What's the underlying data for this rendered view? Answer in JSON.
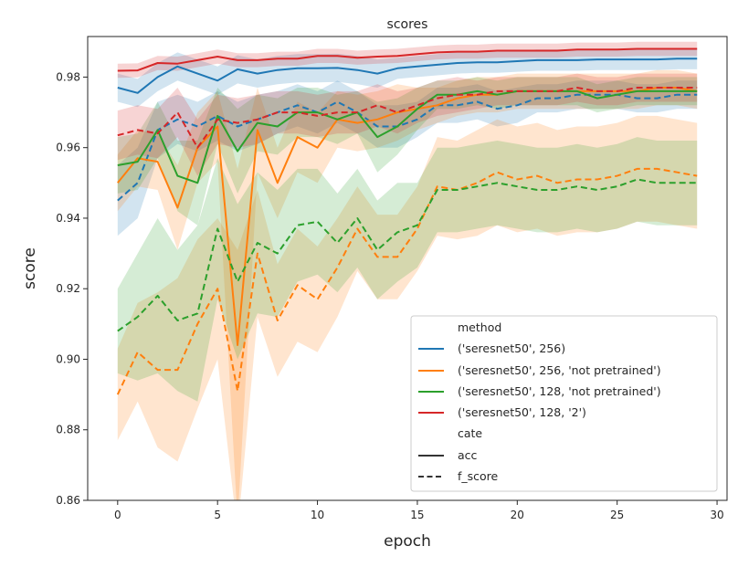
{
  "chart_data": {
    "type": "line",
    "title": "scores",
    "xlabel": "epoch",
    "ylabel": "score",
    "xlim": [
      -1.5,
      30.5
    ],
    "ylim": [
      0.86,
      0.9915
    ],
    "x_ticks": [
      0,
      5,
      10,
      15,
      20,
      25,
      30
    ],
    "x_tick_labels": [
      "0",
      "5",
      "10",
      "15",
      "20",
      "25",
      "30"
    ],
    "y_ticks": [
      0.86,
      0.88,
      0.9,
      0.92,
      0.94,
      0.96,
      0.98
    ],
    "y_tick_labels": [
      "0.86",
      "0.88",
      "0.90",
      "0.92",
      "0.94",
      "0.96",
      "0.98"
    ],
    "grid": false,
    "legend": {
      "placement": "lower-right",
      "hue_title": "method",
      "style_title": "cate",
      "methods": [
        {
          "label": "('seresnet50', 256)",
          "color": "#1f77b4"
        },
        {
          "label": "('seresnet50', 256, 'not pretrained')",
          "color": "#ff7f0e"
        },
        {
          "label": "('seresnet50', 128, 'not pretrained')",
          "color": "#2ca02c"
        },
        {
          "label": "('seresnet50', 128, '2')",
          "color": "#d62728"
        }
      ],
      "styles": [
        {
          "label": "acc",
          "dash": "solid"
        },
        {
          "label": "f_score",
          "dash": "dashed"
        }
      ]
    },
    "x": [
      0,
      1,
      2,
      3,
      4,
      5,
      6,
      7,
      8,
      9,
      10,
      11,
      12,
      13,
      14,
      15,
      16,
      17,
      18,
      19,
      20,
      21,
      22,
      23,
      24,
      25,
      26,
      27,
      28,
      29
    ],
    "series": [
      {
        "method": 0,
        "cate": "acc",
        "values": [
          0.977,
          0.9755,
          0.98,
          0.983,
          0.981,
          0.979,
          0.9822,
          0.981,
          0.982,
          0.9825,
          0.9825,
          0.9826,
          0.982,
          0.981,
          0.9825,
          0.983,
          0.9835,
          0.984,
          0.9842,
          0.9842,
          0.9845,
          0.9848,
          0.9848,
          0.9848,
          0.985,
          0.985,
          0.985,
          0.985,
          0.9852,
          0.9852
        ],
        "band": [
          0.004,
          0.004,
          0.004,
          0.004,
          0.004,
          0.004,
          0.004,
          0.004,
          0.004,
          0.004,
          0.004,
          0.004,
          0.004,
          0.004,
          0.003,
          0.003,
          0.003,
          0.003,
          0.003,
          0.003,
          0.003,
          0.003,
          0.003,
          0.003,
          0.003,
          0.003,
          0.003,
          0.003,
          0.003,
          0.003
        ]
      },
      {
        "method": 0,
        "cate": "f_score",
        "values": [
          0.945,
          0.95,
          0.965,
          0.968,
          0.966,
          0.969,
          0.966,
          0.968,
          0.97,
          0.972,
          0.97,
          0.973,
          0.97,
          0.966,
          0.966,
          0.968,
          0.972,
          0.972,
          0.973,
          0.971,
          0.972,
          0.974,
          0.974,
          0.975,
          0.975,
          0.975,
          0.974,
          0.974,
          0.975,
          0.975
        ],
        "band": [
          0.01,
          0.01,
          0.008,
          0.007,
          0.007,
          0.007,
          0.007,
          0.007,
          0.006,
          0.006,
          0.006,
          0.006,
          0.006,
          0.006,
          0.006,
          0.005,
          0.005,
          0.005,
          0.005,
          0.005,
          0.005,
          0.004,
          0.004,
          0.004,
          0.004,
          0.004,
          0.004,
          0.004,
          0.004,
          0.004
        ]
      },
      {
        "method": 1,
        "cate": "acc",
        "values": [
          0.95,
          0.957,
          0.956,
          0.943,
          0.96,
          0.966,
          0.904,
          0.965,
          0.95,
          0.963,
          0.96,
          0.968,
          0.967,
          0.968,
          0.97,
          0.971,
          0.972,
          0.974,
          0.975,
          0.975,
          0.976,
          0.976,
          0.976,
          0.976,
          0.976,
          0.976,
          0.976,
          0.977,
          0.977,
          0.976
        ],
        "band": [
          0.008,
          0.008,
          0.008,
          0.012,
          0.01,
          0.01,
          0.05,
          0.012,
          0.01,
          0.01,
          0.01,
          0.008,
          0.008,
          0.008,
          0.008,
          0.006,
          0.005,
          0.005,
          0.005,
          0.005,
          0.005,
          0.005,
          0.005,
          0.005,
          0.005,
          0.005,
          0.005,
          0.005,
          0.005,
          0.005
        ]
      },
      {
        "method": 1,
        "cate": "f_score",
        "values": [
          0.89,
          0.902,
          0.897,
          0.897,
          0.91,
          0.92,
          0.891,
          0.93,
          0.911,
          0.921,
          0.917,
          0.926,
          0.937,
          0.929,
          0.929,
          0.937,
          0.949,
          0.948,
          0.95,
          0.953,
          0.951,
          0.952,
          0.95,
          0.951,
          0.951,
          0.952,
          0.954,
          0.954,
          0.953,
          0.952
        ],
        "band": [
          0.013,
          0.014,
          0.022,
          0.026,
          0.024,
          0.02,
          0.04,
          0.018,
          0.016,
          0.016,
          0.015,
          0.014,
          0.012,
          0.012,
          0.012,
          0.012,
          0.014,
          0.014,
          0.015,
          0.015,
          0.015,
          0.015,
          0.015,
          0.015,
          0.015,
          0.015,
          0.015,
          0.015,
          0.015,
          0.015
        ]
      },
      {
        "method": 2,
        "cate": "acc",
        "values": [
          0.955,
          0.956,
          0.965,
          0.952,
          0.95,
          0.969,
          0.959,
          0.967,
          0.966,
          0.97,
          0.97,
          0.968,
          0.97,
          0.963,
          0.966,
          0.971,
          0.975,
          0.975,
          0.976,
          0.975,
          0.976,
          0.976,
          0.976,
          0.976,
          0.974,
          0.975,
          0.976,
          0.976,
          0.976,
          0.976
        ],
        "band": [
          0.008,
          0.008,
          0.008,
          0.01,
          0.012,
          0.008,
          0.012,
          0.008,
          0.008,
          0.007,
          0.007,
          0.007,
          0.006,
          0.01,
          0.008,
          0.006,
          0.004,
          0.004,
          0.004,
          0.004,
          0.004,
          0.004,
          0.004,
          0.004,
          0.004,
          0.004,
          0.004,
          0.004,
          0.004,
          0.004
        ]
      },
      {
        "method": 2,
        "cate": "f_score",
        "values": [
          0.908,
          0.912,
          0.918,
          0.911,
          0.913,
          0.937,
          0.922,
          0.933,
          0.93,
          0.938,
          0.939,
          0.933,
          0.94,
          0.931,
          0.936,
          0.938,
          0.948,
          0.948,
          0.949,
          0.95,
          0.949,
          0.948,
          0.948,
          0.949,
          0.948,
          0.949,
          0.951,
          0.95,
          0.95,
          0.95
        ],
        "band": [
          0.012,
          0.018,
          0.022,
          0.02,
          0.025,
          0.02,
          0.022,
          0.02,
          0.018,
          0.016,
          0.015,
          0.014,
          0.014,
          0.014,
          0.014,
          0.012,
          0.012,
          0.012,
          0.012,
          0.012,
          0.012,
          0.012,
          0.012,
          0.012,
          0.012,
          0.012,
          0.012,
          0.012,
          0.012,
          0.012
        ]
      },
      {
        "method": 3,
        "cate": "acc",
        "values": [
          0.9818,
          0.9819,
          0.984,
          0.9838,
          0.9848,
          0.9858,
          0.9848,
          0.9848,
          0.9852,
          0.9852,
          0.986,
          0.986,
          0.9855,
          0.9858,
          0.986,
          0.9865,
          0.987,
          0.9872,
          0.9872,
          0.9875,
          0.9875,
          0.9875,
          0.9875,
          0.9878,
          0.9878,
          0.9878,
          0.988,
          0.988,
          0.988,
          0.988
        ],
        "band": [
          0.002,
          0.002,
          0.002,
          0.002,
          0.002,
          0.002,
          0.002,
          0.002,
          0.002,
          0.002,
          0.002,
          0.002,
          0.002,
          0.002,
          0.002,
          0.002,
          0.002,
          0.002,
          0.002,
          0.002,
          0.002,
          0.002,
          0.002,
          0.002,
          0.002,
          0.002,
          0.002,
          0.002,
          0.002,
          0.002
        ]
      },
      {
        "method": 3,
        "cate": "f_score",
        "values": [
          0.9635,
          0.965,
          0.964,
          0.97,
          0.96,
          0.968,
          0.967,
          0.968,
          0.97,
          0.97,
          0.969,
          0.97,
          0.97,
          0.972,
          0.97,
          0.972,
          0.974,
          0.975,
          0.975,
          0.976,
          0.976,
          0.976,
          0.976,
          0.977,
          0.976,
          0.976,
          0.977,
          0.977,
          0.977,
          0.977
        ],
        "band": [
          0.007,
          0.007,
          0.007,
          0.007,
          0.008,
          0.007,
          0.007,
          0.007,
          0.006,
          0.006,
          0.006,
          0.006,
          0.006,
          0.006,
          0.006,
          0.005,
          0.005,
          0.005,
          0.004,
          0.004,
          0.004,
          0.004,
          0.004,
          0.004,
          0.004,
          0.004,
          0.004,
          0.004,
          0.004,
          0.004
        ]
      }
    ]
  }
}
